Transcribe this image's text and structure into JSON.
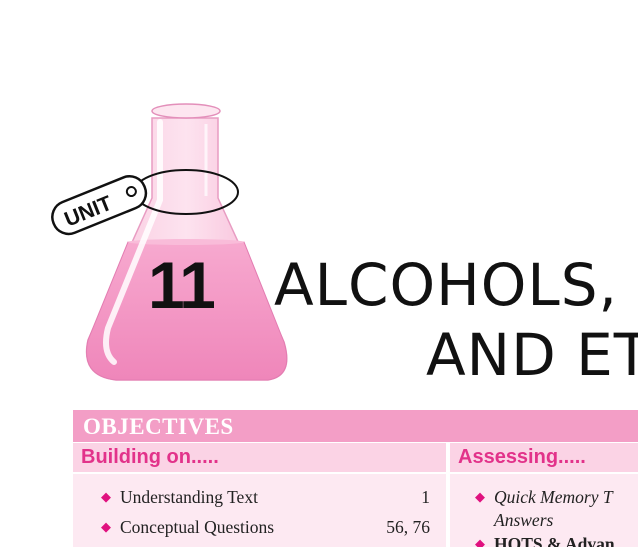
{
  "header": {
    "unit_tag": "UNIT",
    "unit_number": "11",
    "title_line1": "ALCOHOLS,",
    "title_line2": "AND ET"
  },
  "objectives": {
    "heading": "OBJECTIVES",
    "building": {
      "heading": "Building on.....",
      "items": [
        {
          "label": "Understanding Text",
          "pages": "1"
        },
        {
          "label": "Conceptual Questions",
          "pages": "56, 76"
        }
      ]
    },
    "assessing": {
      "heading": "Assessing.....",
      "items": [
        {
          "label": "Quick Memory T",
          "continuation": "Answers"
        },
        {
          "label": "HOTS & Advan"
        }
      ]
    }
  },
  "colors": {
    "accent_pink": "#f39ec6",
    "heading_pink": "#e2328a",
    "bullet_pink": "#e0117f",
    "flask_liquid": "#f49cc8"
  }
}
